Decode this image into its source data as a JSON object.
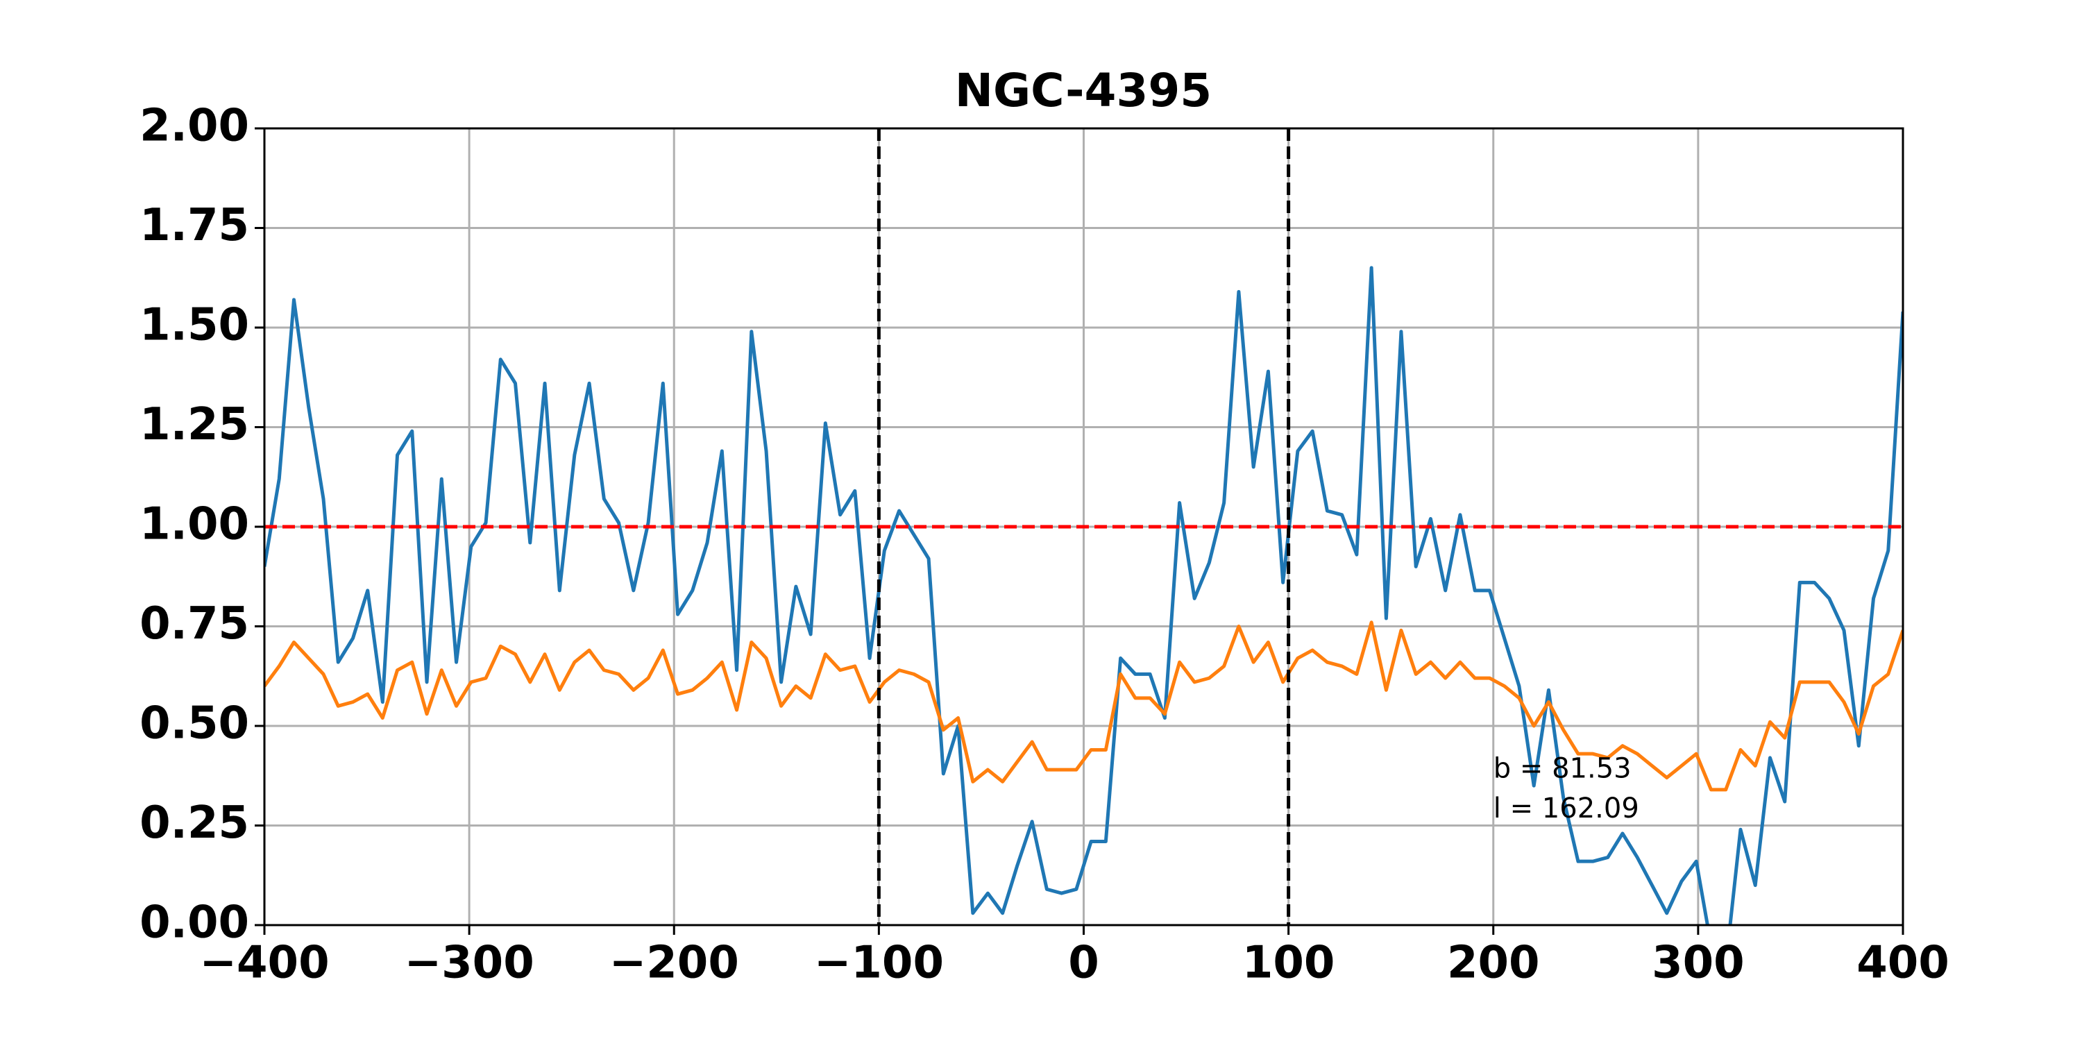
{
  "chart_data": {
    "type": "line",
    "title": "NGC-4395",
    "x": [
      -400.0,
      -392.8,
      -385.6,
      -378.4,
      -371.2,
      -364.0,
      -356.8,
      -349.6,
      -342.3,
      -335.1,
      -327.9,
      -320.7,
      -313.5,
      -306.3,
      -299.1,
      -291.9,
      -284.7,
      -277.5,
      -270.3,
      -263.1,
      -255.9,
      -248.6,
      -241.4,
      -234.2,
      -227.0,
      -219.8,
      -212.6,
      -205.4,
      -198.2,
      -191.0,
      -183.8,
      -176.6,
      -169.4,
      -162.2,
      -155.0,
      -147.7,
      -140.5,
      -133.3,
      -126.1,
      -118.9,
      -111.7,
      -104.5,
      -97.3,
      -90.1,
      -82.9,
      -75.7,
      -68.5,
      -61.3,
      -54.1,
      -46.8,
      -39.6,
      -32.4,
      -25.2,
      -18.0,
      -10.8,
      -3.6,
      3.6,
      10.8,
      18.0,
      25.2,
      32.4,
      39.6,
      46.8,
      54.1,
      61.3,
      68.5,
      75.7,
      82.9,
      90.1,
      97.3,
      104.5,
      111.7,
      118.9,
      126.1,
      133.3,
      140.5,
      147.7,
      155.0,
      162.2,
      169.4,
      176.6,
      183.8,
      191.0,
      198.2,
      205.4,
      212.6,
      219.8,
      227.0,
      234.2,
      241.4,
      248.6,
      255.9,
      263.1,
      270.3,
      277.5,
      284.7,
      291.9,
      299.1,
      306.3,
      313.5,
      320.7,
      327.9,
      335.1,
      342.3,
      349.6,
      356.8,
      364.0,
      371.2,
      378.4,
      385.6,
      392.8,
      400.0
    ],
    "series": [
      {
        "color": "#1f77b4",
        "values": [
          0.9,
          1.12,
          1.57,
          1.3,
          1.07,
          0.66,
          0.72,
          0.84,
          0.56,
          1.18,
          1.24,
          0.61,
          1.12,
          0.66,
          0.95,
          1.01,
          1.42,
          1.36,
          0.96,
          1.36,
          0.84,
          1.18,
          1.36,
          1.07,
          1.01,
          0.84,
          1.01,
          1.36,
          0.78,
          0.84,
          0.96,
          1.19,
          0.64,
          1.49,
          1.19,
          0.61,
          0.85,
          0.73,
          1.26,
          1.03,
          1.09,
          0.67,
          0.94,
          1.04,
          0.98,
          0.92,
          0.38,
          0.5,
          0.03,
          0.08,
          0.03,
          0.15,
          0.26,
          0.09,
          0.08,
          0.09,
          0.21,
          0.21,
          0.67,
          0.63,
          0.63,
          0.52,
          1.06,
          0.82,
          0.91,
          1.06,
          1.59,
          1.15,
          1.39,
          0.86,
          1.19,
          1.24,
          1.04,
          1.03,
          0.93,
          1.65,
          0.77,
          1.49,
          0.9,
          1.02,
          0.84,
          1.03,
          0.84,
          0.84,
          0.72,
          0.6,
          0.35,
          0.59,
          0.32,
          0.16,
          0.16,
          0.17,
          0.23,
          0.17,
          0.1,
          0.03,
          0.11,
          0.16,
          -0.05,
          -0.1,
          0.24,
          0.1,
          0.42,
          0.31,
          0.86,
          0.86,
          0.82,
          0.74,
          0.45,
          0.82,
          0.94,
          1.54
        ]
      },
      {
        "color": "#ff7f0e",
        "values": [
          0.6,
          0.65,
          0.71,
          0.67,
          0.63,
          0.55,
          0.56,
          0.58,
          0.52,
          0.64,
          0.66,
          0.53,
          0.64,
          0.55,
          0.61,
          0.62,
          0.7,
          0.68,
          0.61,
          0.68,
          0.59,
          0.66,
          0.69,
          0.64,
          0.63,
          0.59,
          0.62,
          0.69,
          0.58,
          0.59,
          0.62,
          0.66,
          0.54,
          0.71,
          0.67,
          0.55,
          0.6,
          0.57,
          0.68,
          0.64,
          0.65,
          0.56,
          0.61,
          0.64,
          0.63,
          0.61,
          0.49,
          0.52,
          0.36,
          0.39,
          0.36,
          0.41,
          0.46,
          0.39,
          0.39,
          0.39,
          0.44,
          0.44,
          0.63,
          0.57,
          0.57,
          0.53,
          0.66,
          0.61,
          0.62,
          0.65,
          0.75,
          0.66,
          0.71,
          0.61,
          0.67,
          0.69,
          0.66,
          0.65,
          0.63,
          0.76,
          0.59,
          0.74,
          0.63,
          0.66,
          0.62,
          0.66,
          0.62,
          0.62,
          0.6,
          0.57,
          0.5,
          0.56,
          0.49,
          0.43,
          0.43,
          0.42,
          0.45,
          0.43,
          0.4,
          0.37,
          0.4,
          0.43,
          0.34,
          0.34,
          0.44,
          0.4,
          0.51,
          0.47,
          0.61,
          0.61,
          0.61,
          0.56,
          0.48,
          0.6,
          0.63,
          0.74
        ]
      }
    ],
    "xlim": [
      -400,
      400
    ],
    "ylim": [
      0,
      2
    ],
    "xticks": [
      {
        "value": -400,
        "label": "−400"
      },
      {
        "value": -300,
        "label": "−300"
      },
      {
        "value": -200,
        "label": "−200"
      },
      {
        "value": -100,
        "label": "−100"
      },
      0,
      100,
      200,
      300,
      400
    ],
    "yticks": [
      {
        "value": 0,
        "label": "0.00"
      },
      {
        "value": 0.25,
        "label": "0.25"
      },
      {
        "value": 0.5,
        "label": "0.50"
      },
      {
        "value": 0.75,
        "label": "0.75"
      },
      {
        "value": 1,
        "label": "1.00"
      },
      {
        "value": 1.25,
        "label": "1.25"
      },
      {
        "value": 1.5,
        "label": "1.50"
      },
      {
        "value": 1.75,
        "label": "1.75"
      },
      {
        "value": 2,
        "label": "2.00"
      }
    ],
    "grid": true,
    "vlines": [
      -100,
      100
    ],
    "vline_color": "#000000",
    "hline": 1,
    "hline_color": "#ff0000",
    "annotations": [
      {
        "text": "b = 81.53",
        "x": 200,
        "y": 0.37
      },
      {
        "text": "l = 162.09",
        "x": 200,
        "y": 0.27
      }
    ]
  }
}
